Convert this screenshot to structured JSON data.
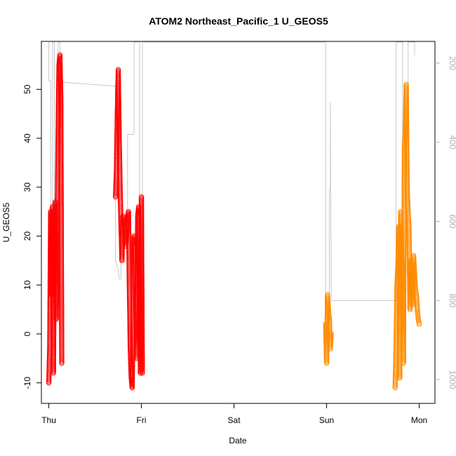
{
  "chart_data": {
    "type": "scatter",
    "title": "ATOM2 Northeast_Pacific_1 U_GEOS5",
    "xlabel": "Date",
    "ylabel": "U_GEOS5",
    "x_ticks": [
      "Thu",
      "Fri",
      "Sat",
      "Sun",
      "Mon"
    ],
    "x_tick_days": [
      0,
      1,
      2,
      3,
      4
    ],
    "xlim": [
      -0.08,
      4.17
    ],
    "ylim": [
      -14.2,
      59.8
    ],
    "y_ticks": [
      -10,
      0,
      10,
      20,
      30,
      40,
      50
    ],
    "y2_ticks": [
      200,
      400,
      600,
      800,
      1000
    ],
    "y2_ticks_label": [
      "200",
      "400",
      "600",
      "800",
      "1000"
    ],
    "y2lim": [
      1060,
      145
    ],
    "y2_reversed": true,
    "grid": false,
    "colors": {
      "series_red": "#ff0000",
      "series_orange": "#ff8c00",
      "pressure": "#c8c8c8",
      "axis": "#000000",
      "right_axis": "#b0b0b0"
    },
    "series": [
      {
        "color": "red",
        "marker": "open-circle",
        "x": [
          0.0,
          0.01,
          0.02,
          0.03,
          0.04,
          0.05,
          0.06,
          0.07,
          0.08,
          0.09,
          0.1,
          0.11,
          0.12,
          0.13,
          0.14,
          0.72,
          0.73,
          0.74,
          0.75,
          0.76,
          0.77,
          0.78,
          0.79,
          0.8,
          0.81,
          0.82,
          0.83,
          0.84,
          0.85,
          0.86,
          0.87,
          0.88,
          0.89,
          0.9,
          0.91,
          0.92,
          0.93,
          0.94,
          0.95,
          0.96,
          0.97,
          0.98,
          0.99,
          1.0,
          1.01
        ],
        "y": [
          -10,
          -3,
          25,
          8,
          26,
          -8,
          18,
          27,
          3,
          22,
          40,
          55,
          57,
          48,
          -6,
          28,
          33,
          45,
          54,
          40,
          30,
          22,
          15,
          24,
          23,
          22,
          18,
          20,
          24,
          25,
          10,
          -3,
          -9,
          -11,
          3,
          20,
          18,
          5,
          -5,
          24,
          26,
          4,
          -8,
          28,
          -8
        ]
      },
      {
        "color": "orange",
        "marker": "open-circle",
        "x": [
          2.99,
          3.0,
          3.01,
          3.02,
          3.03,
          3.04,
          3.05,
          3.74,
          3.75,
          3.76,
          3.77,
          3.78,
          3.79,
          3.8,
          3.81,
          3.82,
          3.83,
          3.84,
          3.85,
          3.86,
          3.87,
          3.88,
          3.89,
          3.9,
          3.91,
          3.92,
          3.93,
          3.94,
          3.95,
          3.96,
          3.97,
          3.98,
          3.99,
          4.0
        ],
        "y": [
          2,
          -6,
          8,
          5,
          3,
          -3,
          0,
          -11,
          -3,
          10,
          14,
          22,
          -9,
          25,
          18,
          12,
          -6,
          38,
          42,
          51,
          30,
          25,
          22,
          5,
          15,
          10,
          6,
          16,
          12,
          9,
          8,
          5,
          3,
          2
        ]
      }
    ],
    "pressure_trace": {
      "axis": "right",
      "x": [
        0.0,
        0.0,
        0.02,
        0.02,
        0.04,
        0.04,
        0.06,
        0.06,
        0.1,
        0.1,
        0.12,
        0.12,
        0.14,
        0.14,
        0.72,
        0.72,
        0.75,
        0.76,
        0.78,
        0.78,
        0.85,
        0.85,
        0.92,
        0.92,
        0.98,
        0.98,
        1.01,
        1.01,
        2.99,
        2.99,
        3.03,
        3.03,
        3.04,
        3.04,
        3.05,
        3.75,
        3.75,
        3.82,
        3.82,
        3.88,
        3.88,
        3.95,
        3.95
      ],
      "y": [
        145,
        245,
        245,
        800,
        800,
        145,
        145,
        600,
        600,
        145,
        145,
        560,
        560,
        248,
        258,
        700,
        720,
        745,
        745,
        700,
        700,
        380,
        380,
        145,
        145,
        830,
        830,
        145,
        145,
        800,
        800,
        520,
        520,
        300,
        800,
        800,
        145,
        145,
        600,
        600,
        145,
        145,
        180
      ]
    }
  }
}
